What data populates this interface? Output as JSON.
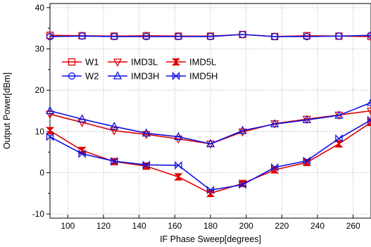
{
  "chart_data": {
    "type": "line",
    "xlabel": "IF Phase Sweep[degrees]",
    "ylabel": "Output Power[dBm]",
    "xlim": [
      90,
      270
    ],
    "ylim": [
      -11,
      41
    ],
    "xticks": [
      100,
      120,
      140,
      160,
      180,
      200,
      220,
      240,
      260
    ],
    "yticks": [
      -10,
      0,
      10,
      20,
      30,
      40
    ],
    "grid": true,
    "legend_position": "upper-left",
    "x": [
      90,
      108,
      126,
      144,
      162,
      180,
      198,
      216,
      234,
      252,
      270
    ],
    "series": [
      {
        "name": "W1",
        "color": "#e00000",
        "marker": "square",
        "values": [
          33.3,
          33.2,
          33.1,
          33.2,
          33.1,
          33.1,
          33.5,
          33.0,
          33.2,
          33.1,
          33.0
        ]
      },
      {
        "name": "W2",
        "color": "#1010e0",
        "marker": "circle",
        "values": [
          33.0,
          33.1,
          33.0,
          33.0,
          33.0,
          33.0,
          33.5,
          33.0,
          33.0,
          33.1,
          33.3
        ]
      },
      {
        "name": "IMD3L",
        "color": "#e00000",
        "marker": "triangle-down",
        "values": [
          14.2,
          12.2,
          10.2,
          9.3,
          8.2,
          7.0,
          9.9,
          11.9,
          13.0,
          14.0,
          15.0
        ]
      },
      {
        "name": "IMD3H",
        "color": "#1010e0",
        "marker": "triangle-up",
        "values": [
          15.0,
          13.0,
          11.2,
          9.6,
          8.7,
          7.0,
          10.2,
          11.8,
          12.8,
          13.9,
          17.0
        ]
      },
      {
        "name": "IMD5L",
        "color": "#e00000",
        "marker": "hourglass",
        "values": [
          10.2,
          5.4,
          2.7,
          1.6,
          -1.0,
          -5.0,
          -2.6,
          0.7,
          2.5,
          7.0,
          12.2
        ]
      },
      {
        "name": "IMD5H",
        "color": "#1010e0",
        "marker": "bowtie",
        "values": [
          8.7,
          4.6,
          2.8,
          1.9,
          1.8,
          -4.2,
          -2.9,
          1.3,
          2.9,
          8.3,
          12.8
        ]
      }
    ]
  }
}
